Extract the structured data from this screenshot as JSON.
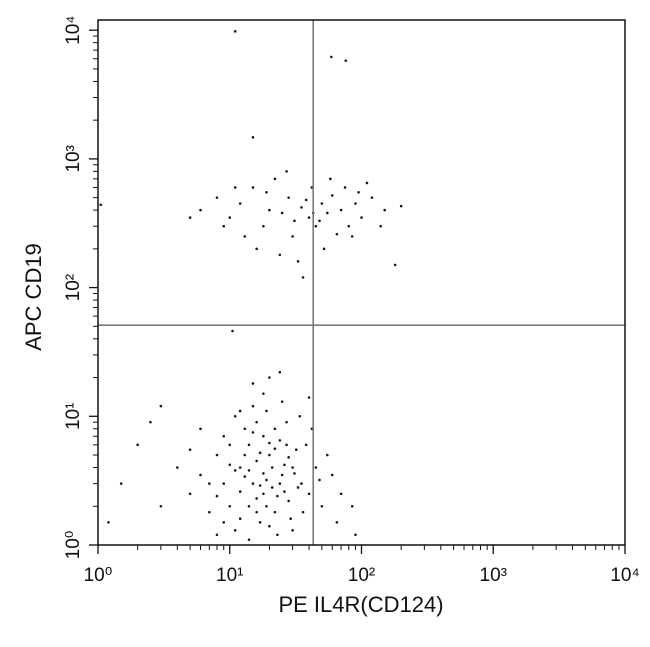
{
  "chart_data": {
    "type": "scatter",
    "x_label": "PE IL4R(CD124)",
    "y_label": "APC CD19",
    "log_x": true,
    "log_y": true,
    "xlim": [
      1,
      10000
    ],
    "ylim": [
      1,
      12000
    ],
    "xticks": [
      {
        "value": 1,
        "label": "10⁰"
      },
      {
        "value": 10,
        "label": "10¹"
      },
      {
        "value": 100,
        "label": "10²"
      },
      {
        "value": 1000,
        "label": "10³"
      },
      {
        "value": 10000,
        "label": "10⁴"
      }
    ],
    "yticks": [
      {
        "value": 1,
        "label": "10⁰"
      },
      {
        "value": 10,
        "label": "10¹"
      },
      {
        "value": 100,
        "label": "10²"
      },
      {
        "value": 1000,
        "label": "10³"
      },
      {
        "value": 10000,
        "label": "10⁴"
      }
    ],
    "minor_ticks": [
      2,
      3,
      4,
      5,
      6,
      7,
      8,
      9,
      20,
      30,
      40,
      50,
      60,
      70,
      80,
      90,
      200,
      300,
      400,
      500,
      600,
      700,
      800,
      900,
      2000,
      3000,
      4000,
      5000,
      6000,
      7000,
      8000,
      9000
    ],
    "quadrant_x": 43,
    "quadrant_y": 51,
    "color": "#1a1a1a",
    "quadrant_color": "#7a7a7a",
    "x": [
      15,
      18,
      12,
      20,
      25,
      10,
      22,
      14,
      30,
      17,
      9,
      28,
      13,
      19,
      24,
      11,
      16,
      21,
      35,
      8,
      40,
      27,
      6,
      12,
      18,
      23,
      14,
      32,
      19,
      7,
      26,
      15,
      10,
      45,
      16,
      50,
      5,
      13,
      29,
      22,
      11,
      38,
      4,
      17,
      20,
      33,
      9,
      24,
      14,
      60,
      3,
      18,
      12,
      27,
      8,
      21,
      36,
      15,
      2,
      55,
      10,
      19,
      25,
      6,
      31,
      13,
      16,
      42,
      7,
      23,
      1.5,
      70,
      11,
      28,
      17,
      9,
      20,
      34,
      5,
      14,
      65,
      2.5,
      18,
      12,
      30,
      22,
      8,
      26,
      16,
      48,
      1.2,
      3,
      85,
      90,
      20,
      15,
      40,
      24,
      6,
      8,
      10,
      12,
      15,
      18,
      20,
      22,
      25,
      28,
      30,
      35,
      40,
      42,
      45,
      50,
      55,
      60,
      70,
      80,
      90,
      100,
      120,
      150,
      200,
      16,
      24,
      33,
      13,
      9,
      75,
      110,
      38,
      48,
      65,
      27,
      19,
      11,
      5,
      140,
      180,
      36,
      52,
      85,
      43,
      31,
      58,
      95,
      1.05,
      11,
      59,
      76,
      15,
      10.5
    ],
    "y": [
      3,
      2.5,
      4,
      5,
      3.5,
      2,
      1.8,
      6,
      4,
      1.5,
      3,
      2.2,
      8,
      3.2,
      6.5,
      1.3,
      4.5,
      2.8,
      3,
      5,
      2.5,
      9,
      3.5,
      2.6,
      7,
      1.2,
      2,
      5.5,
      11,
      1.8,
      4.2,
      12,
      6,
      4,
      2.3,
      2,
      2.5,
      3.4,
      1.6,
      8,
      10,
      6,
      4,
      5.2,
      1.4,
      2.8,
      7,
      3,
      1.1,
      3.5,
      2,
      15,
      1.6,
      6,
      1.2,
      4,
      1.8,
      7.5,
      6,
      5,
      4.2,
      2,
      13,
      8,
      3.6,
      5,
      9,
      8,
      3,
      2.4,
      3,
      2.5,
      3.8,
      4.8,
      2.9,
      1.5,
      6.2,
      10,
      5.5,
      3.8,
      1.5,
      9,
      3.6,
      11,
      1.3,
      5.6,
      2.4,
      2.6,
      1.8,
      3.2,
      1.5,
      12,
      2,
      1.2,
      20,
      18,
      14,
      22,
      400,
      500,
      350,
      450,
      600,
      300,
      400,
      700,
      380,
      500,
      250,
      420,
      350,
      600,
      300,
      450,
      380,
      520,
      400,
      300,
      450,
      350,
      500,
      400,
      430,
      200,
      180,
      160,
      250,
      300,
      600,
      650,
      480,
      330,
      260,
      800,
      550,
      600,
      350,
      300,
      150,
      120,
      200,
      250,
      380,
      330,
      700,
      550,
      440,
      9800,
      6200,
      5800,
      1470,
      46
    ]
  }
}
